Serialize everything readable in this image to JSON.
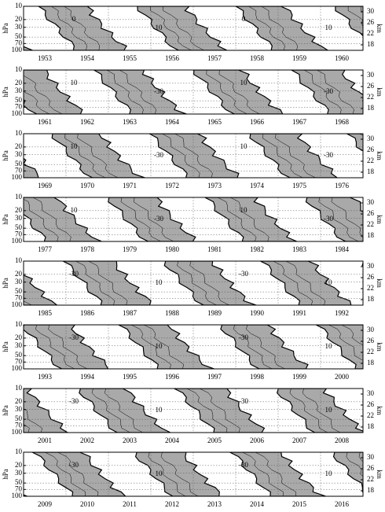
{
  "chart_data": [
    {
      "type": "contour",
      "categories": [
        "1953",
        "1954",
        "1955",
        "1956",
        "1957",
        "1958",
        "1959",
        "1960"
      ],
      "ylim": [
        100,
        10
      ],
      "log_y": true,
      "yticks": [
        10,
        20,
        30,
        50,
        70,
        100
      ],
      "y2lim": [
        16,
        32
      ],
      "y2ticks": [
        18,
        22,
        26,
        30
      ],
      "ylabel": "hPa",
      "y2label": "km",
      "grid": true,
      "annotations": [
        "0",
        "10",
        "0",
        "10"
      ]
    },
    {
      "type": "contour",
      "categories": [
        "1961",
        "1962",
        "1963",
        "1964",
        "1965",
        "1966",
        "1967",
        "1968"
      ],
      "ylim": [
        100,
        10
      ],
      "log_y": true,
      "yticks": [
        10,
        20,
        30,
        50,
        70,
        100
      ],
      "y2lim": [
        16,
        32
      ],
      "y2ticks": [
        18,
        22,
        26,
        30
      ],
      "ylabel": "hPa",
      "y2label": "km",
      "grid": true,
      "annotations": [
        "10",
        "-30",
        "10",
        "-30"
      ]
    },
    {
      "type": "contour",
      "categories": [
        "1969",
        "1970",
        "1971",
        "1972",
        "1973",
        "1974",
        "1975",
        "1976"
      ],
      "ylim": [
        100,
        10
      ],
      "log_y": true,
      "yticks": [
        10,
        20,
        30,
        50,
        70,
        100
      ],
      "y2lim": [
        16,
        32
      ],
      "y2ticks": [
        18,
        22,
        26,
        30
      ],
      "ylabel": "hPa",
      "y2label": "km",
      "grid": true,
      "annotations": [
        "10",
        "-30",
        "10",
        "-30"
      ]
    },
    {
      "type": "contour",
      "categories": [
        "1977",
        "1978",
        "1979",
        "1980",
        "1981",
        "1982",
        "1983",
        "1984"
      ],
      "ylim": [
        100,
        10
      ],
      "log_y": true,
      "yticks": [
        10,
        20,
        30,
        50,
        70,
        100
      ],
      "y2lim": [
        16,
        32
      ],
      "y2ticks": [
        18,
        22,
        26,
        30
      ],
      "ylabel": "hPa",
      "y2label": "km",
      "grid": true,
      "annotations": [
        "10",
        "-30",
        "10",
        "-30"
      ]
    },
    {
      "type": "contour",
      "categories": [
        "1985",
        "1986",
        "1987",
        "1988",
        "1989",
        "1990",
        "1991",
        "1992"
      ],
      "ylim": [
        100,
        10
      ],
      "log_y": true,
      "yticks": [
        10,
        20,
        30,
        50,
        70,
        100
      ],
      "y2lim": [
        16,
        32
      ],
      "y2ticks": [
        18,
        22,
        26,
        30
      ],
      "ylabel": "hPa",
      "y2label": "km",
      "grid": true,
      "annotations": [
        "-30",
        "10",
        "-30",
        "10"
      ]
    },
    {
      "type": "contour",
      "categories": [
        "1993",
        "1994",
        "1995",
        "1996",
        "1997",
        "1998",
        "1999",
        "2000"
      ],
      "ylim": [
        100,
        10
      ],
      "log_y": true,
      "yticks": [
        10,
        20,
        30,
        50,
        70,
        100
      ],
      "y2lim": [
        16,
        32
      ],
      "y2ticks": [
        18,
        22,
        26,
        30
      ],
      "ylabel": "hPa",
      "y2label": "km",
      "grid": true,
      "annotations": [
        "-30",
        "10",
        "-30",
        "10"
      ]
    },
    {
      "type": "contour",
      "categories": [
        "2001",
        "2002",
        "2003",
        "2004",
        "2005",
        "2006",
        "2007",
        "2008"
      ],
      "ylim": [
        100,
        10
      ],
      "log_y": true,
      "yticks": [
        10,
        20,
        30,
        50,
        70,
        100
      ],
      "y2lim": [
        16,
        32
      ],
      "y2ticks": [
        18,
        22,
        26,
        30
      ],
      "ylabel": "hPa",
      "y2label": "km",
      "grid": true,
      "annotations": [
        "-30",
        "10",
        "-30",
        "10"
      ]
    },
    {
      "type": "contour",
      "categories": [
        "2009",
        "2010",
        "2011",
        "2012",
        "2013",
        "2014",
        "2015",
        "2016"
      ],
      "ylim": [
        100,
        10
      ],
      "log_y": true,
      "yticks": [
        10,
        20,
        30,
        50,
        70,
        100
      ],
      "y2lim": [
        16,
        32
      ],
      "y2ticks": [
        18,
        22,
        26,
        30
      ],
      "ylabel": "hPa",
      "y2label": "km",
      "grid": true,
      "annotations": [
        "-30",
        "10",
        "-30",
        "10"
      ]
    }
  ]
}
